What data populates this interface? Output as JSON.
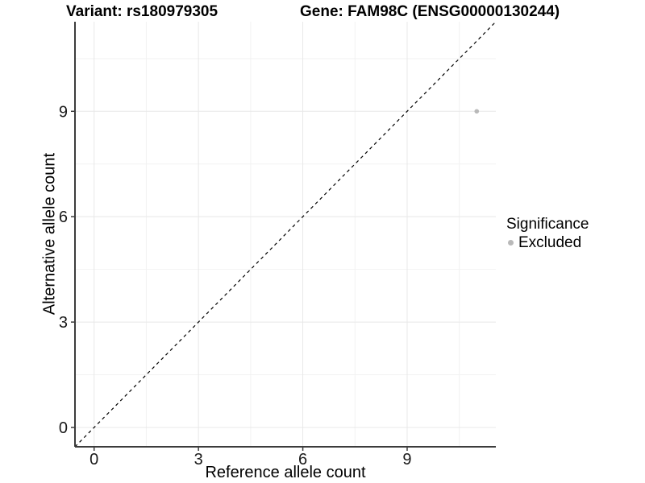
{
  "header": {
    "title_left": "Variant: rs180979305",
    "title_right": "Gene: FAM98C (ENSG00000130244)"
  },
  "chart_data": {
    "type": "scatter",
    "xlabel": "Reference allele count",
    "ylabel": "Alternative allele count",
    "xlim": [
      -0.55,
      11.55
    ],
    "ylim": [
      -0.55,
      11.55
    ],
    "x_ticks": [
      0,
      3,
      6,
      9
    ],
    "y_ticks": [
      0,
      3,
      6,
      9
    ],
    "x_minor_ticks": [
      1.5,
      4.5,
      7.5,
      10.5
    ],
    "y_minor_ticks": [
      1.5,
      4.5,
      7.5,
      10.5
    ],
    "grid": true,
    "points": [
      {
        "x": 11,
        "y": 9,
        "series": "Excluded",
        "color": "#b9b9b9",
        "radius": 2.8
      }
    ],
    "reference_line": {
      "type": "identity",
      "slope": 1,
      "intercept": 0,
      "style": "dashed",
      "color": "#000000"
    },
    "legend": {
      "title": "Significance",
      "position": "right",
      "items": [
        {
          "label": "Excluded",
          "color": "#b9b9b9"
        }
      ]
    }
  },
  "colors": {
    "background": "#ffffff",
    "grid_major": "#e8e8e8",
    "grid_minor": "#f2f2f2",
    "axis_line": "#3c3c3c",
    "tick_text": "#1a1a1a",
    "title_text": "#000000",
    "excluded": "#b9b9b9"
  }
}
